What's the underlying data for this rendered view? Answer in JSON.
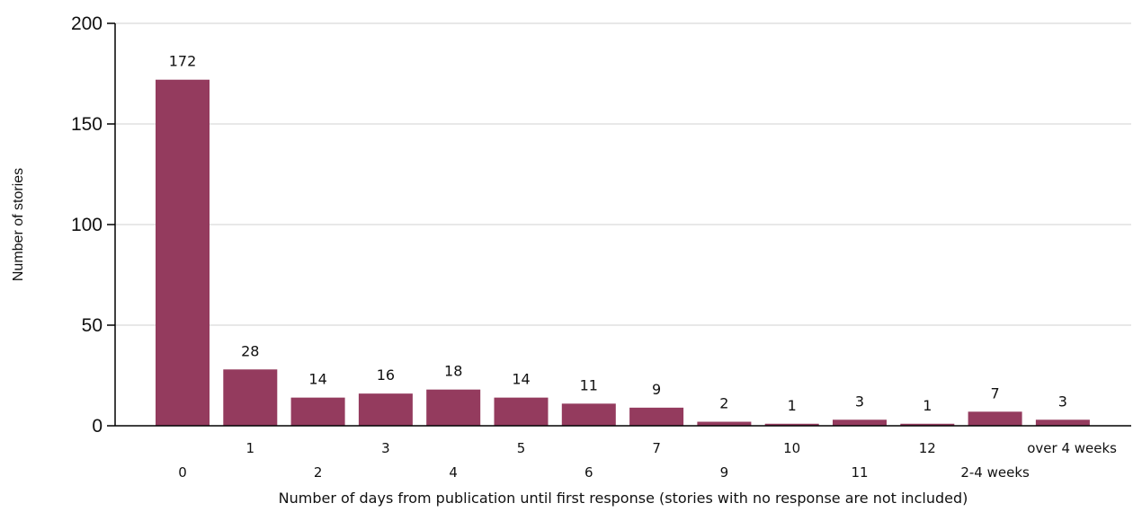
{
  "chart_data": {
    "type": "bar",
    "title": "",
    "xlabel": "Number of days from publication until first response (stories with no response are not included)",
    "ylabel": "Number of stories",
    "ylim": [
      0,
      200
    ],
    "yticks": [
      0,
      50,
      100,
      150,
      200
    ],
    "grid": true,
    "legend": "none",
    "categories": [
      "0",
      "1",
      "2",
      "3",
      "4",
      "5",
      "6",
      "7",
      "9",
      "10",
      "11",
      "12",
      "2-4 weeks",
      "over 4 weeks"
    ],
    "values": [
      172,
      28,
      14,
      16,
      18,
      14,
      11,
      9,
      2,
      1,
      3,
      1,
      7,
      3
    ],
    "bar_color": "#943B5E",
    "grid_color": "#D9D9D9",
    "axis_color": "#000000"
  }
}
